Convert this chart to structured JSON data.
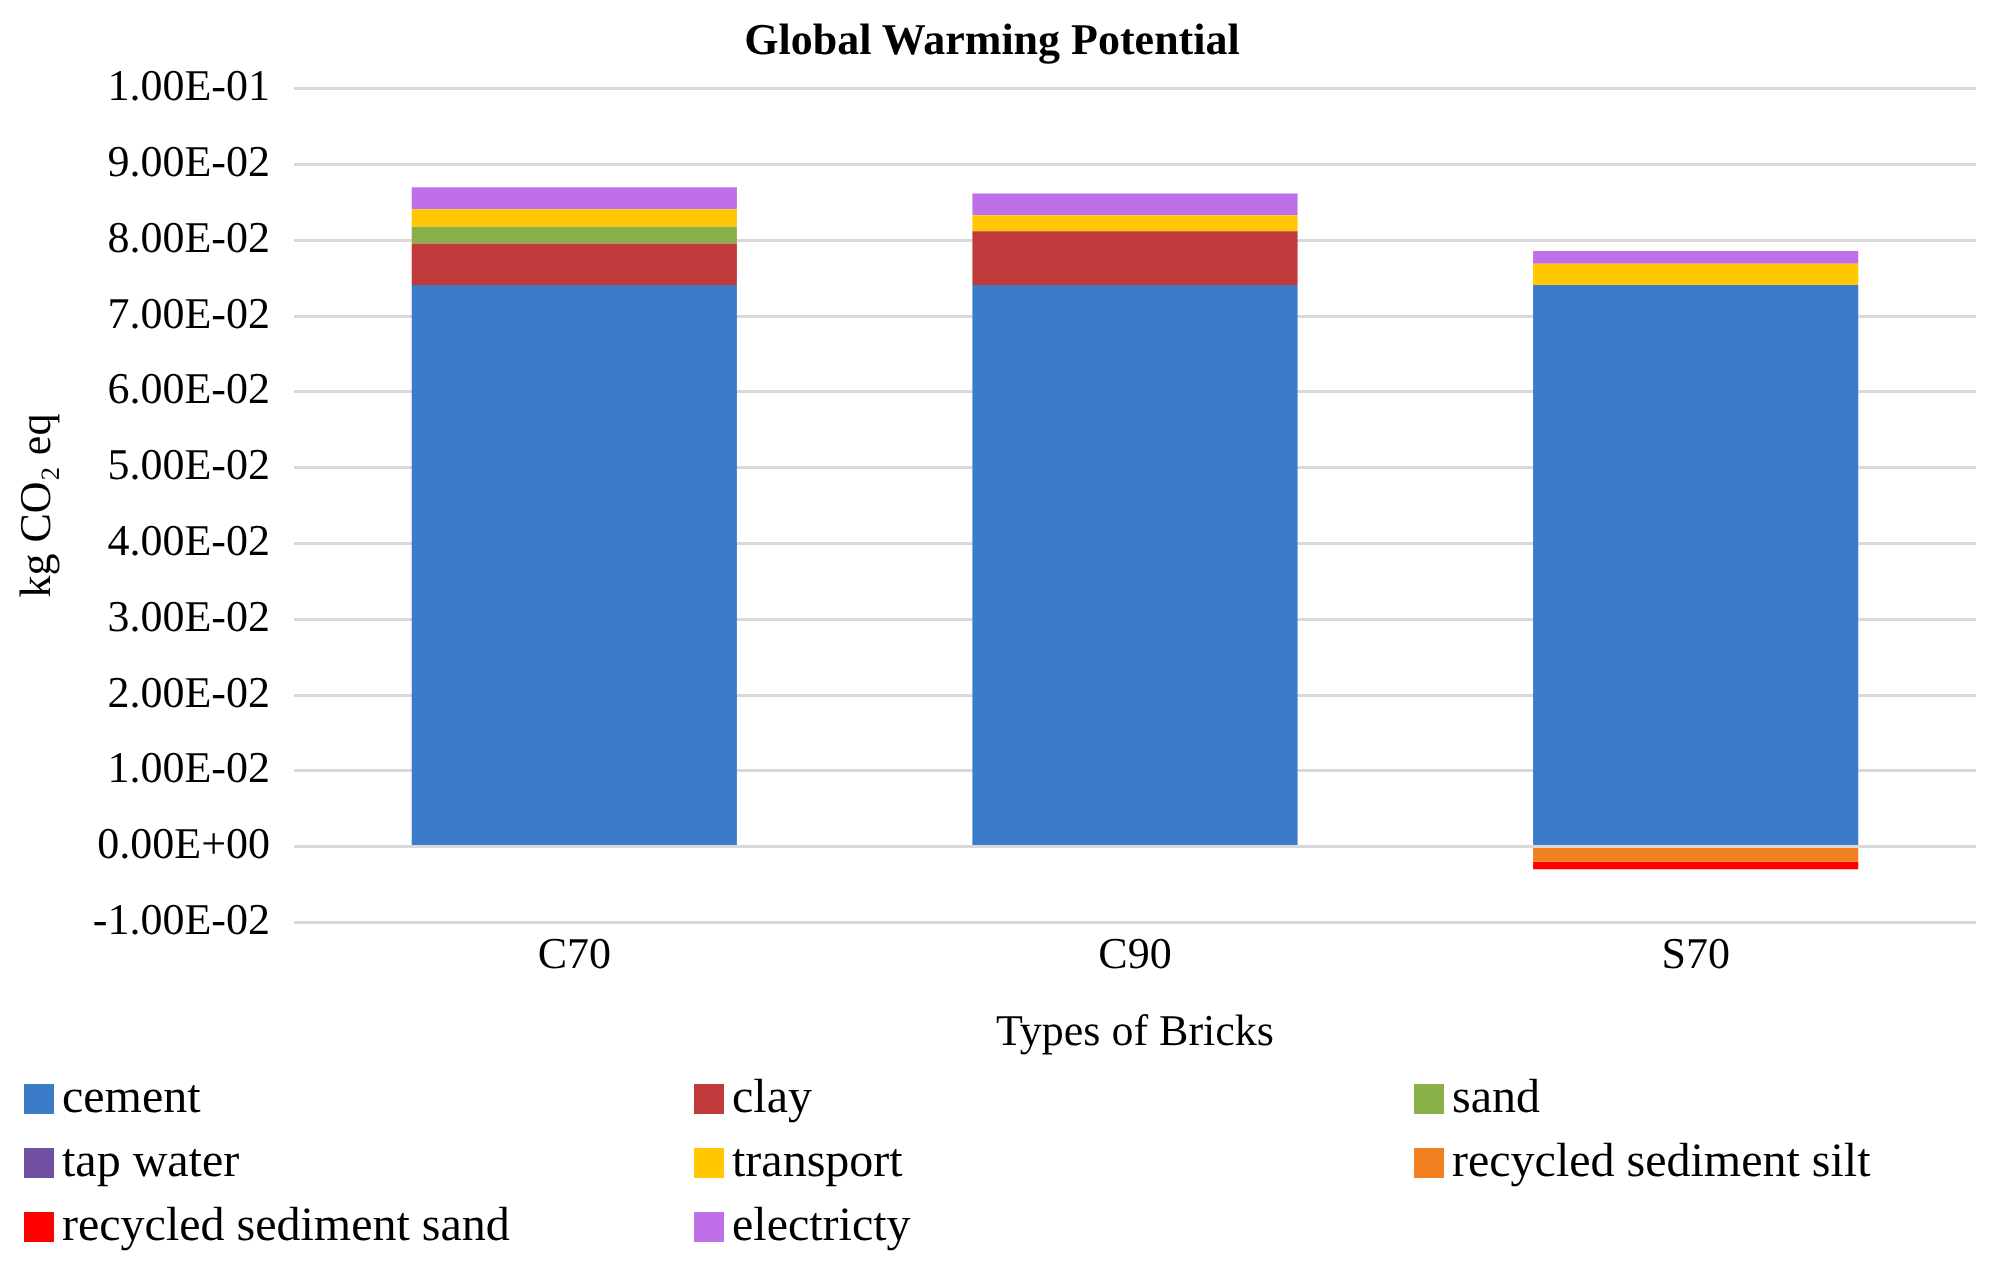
{
  "chart_data": {
    "type": "bar",
    "stacked": true,
    "title": "Global Warming Potential",
    "xlabel": "Types of Bricks",
    "ylabel": "kg CO₂ eq",
    "categories": [
      "C70",
      "C90",
      "S70"
    ],
    "series": [
      {
        "name": "cement",
        "color": "#3a7cc8",
        "values": [
          0.0741,
          0.0741,
          0.0741
        ]
      },
      {
        "name": "clay",
        "color": "#c0393b",
        "values": [
          0.0055,
          0.0071,
          0
        ]
      },
      {
        "name": "sand",
        "color": "#8ab04a",
        "values": [
          0.0022,
          0,
          0
        ]
      },
      {
        "name": "tap water",
        "color": "#7050a0",
        "values": [
          0,
          0,
          0
        ]
      },
      {
        "name": "transport",
        "color": "#ffc800",
        "values": [
          0.0023,
          0.0021,
          0.0028
        ]
      },
      {
        "name": "recycled sediment silt",
        "color": "#f08020",
        "values": [
          0,
          0,
          -0.002
        ]
      },
      {
        "name": "recycled sediment sand",
        "color": "#ff0000",
        "values": [
          0,
          0,
          -0.001
        ]
      },
      {
        "name": "electricty",
        "color": "#bf70e8",
        "values": [
          0.0029,
          0.0029,
          0.0017
        ]
      }
    ],
    "ylim": [
      -0.01,
      0.1
    ],
    "yticks": [
      {
        "value": -0.01,
        "label": "-1.00E-02"
      },
      {
        "value": 0,
        "label": "0.00E+00"
      },
      {
        "value": 0.01,
        "label": "1.00E-02"
      },
      {
        "value": 0.02,
        "label": "2.00E-02"
      },
      {
        "value": 0.03,
        "label": "3.00E-02"
      },
      {
        "value": 0.04,
        "label": "4.00E-02"
      },
      {
        "value": 0.05,
        "label": "5.00E-02"
      },
      {
        "value": 0.06,
        "label": "6.00E-02"
      },
      {
        "value": 0.07,
        "label": "7.00E-02"
      },
      {
        "value": 0.08,
        "label": "8.00E-02"
      },
      {
        "value": 0.09,
        "label": "9.00E-02"
      },
      {
        "value": 0.1,
        "label": "1.00E-01"
      }
    ],
    "grid": "y",
    "legend": "bottom"
  }
}
